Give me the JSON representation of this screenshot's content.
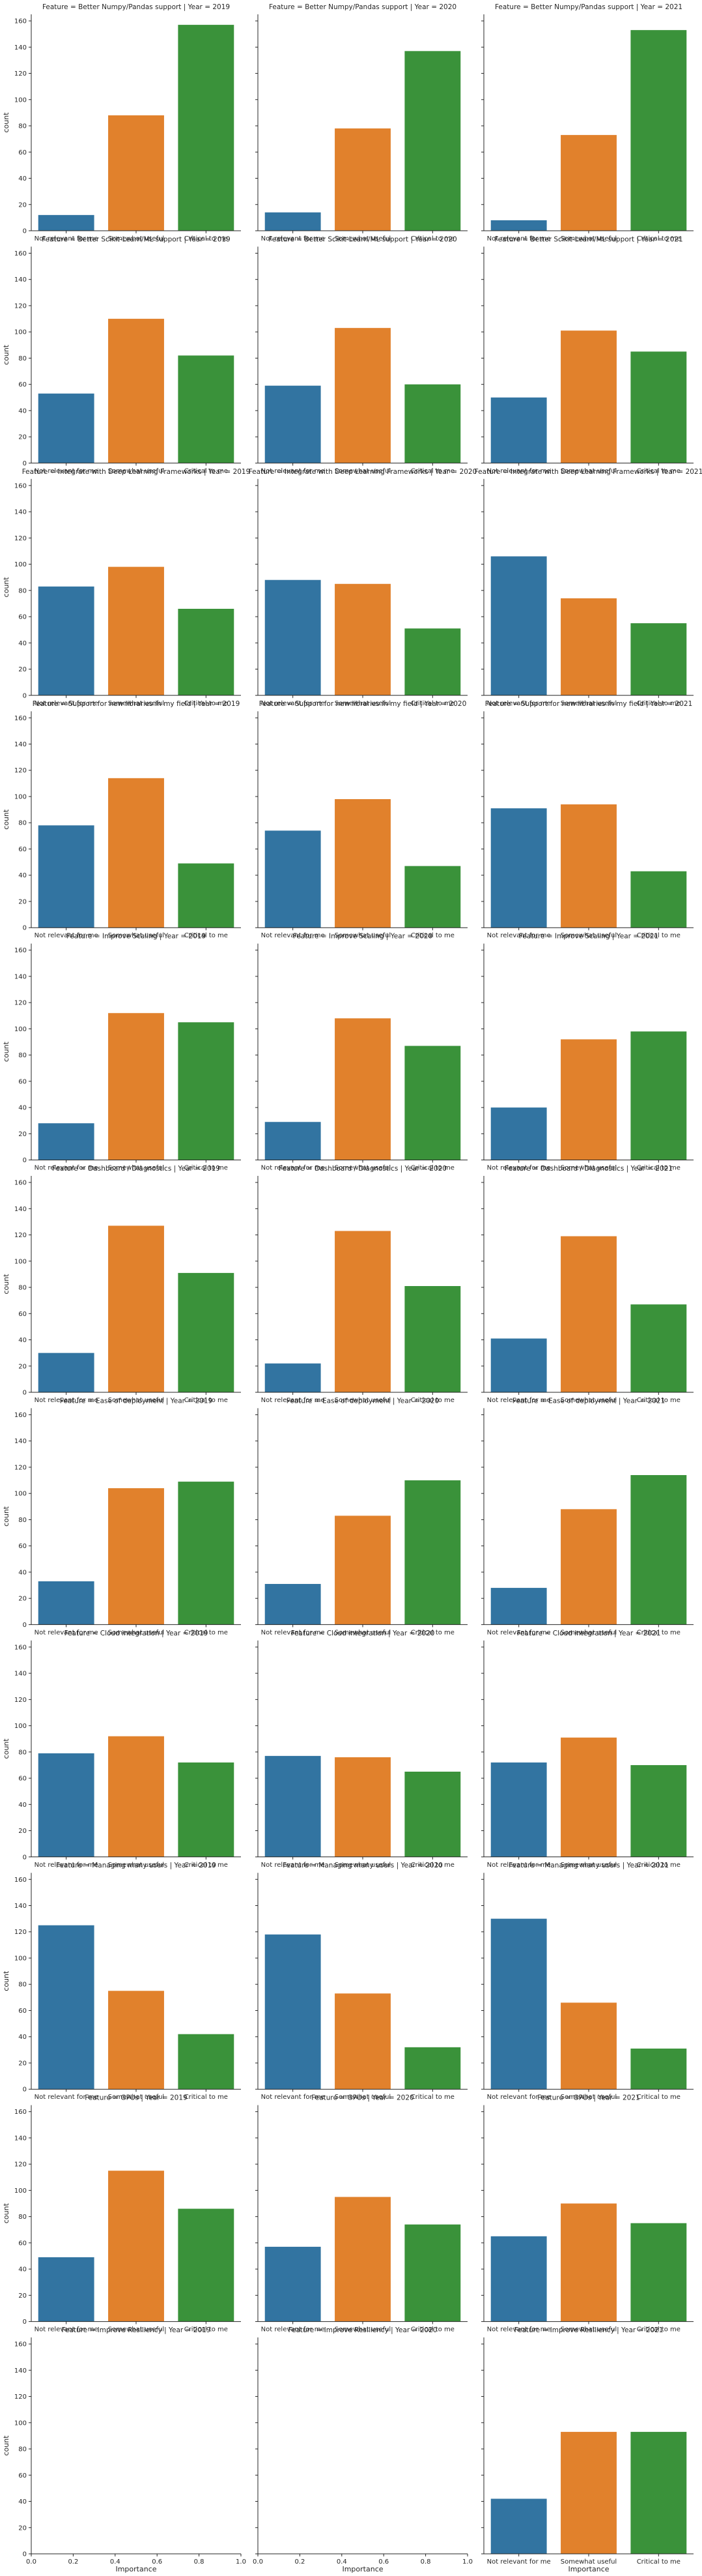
{
  "colors": {
    "Not relevant for me": "#3274a1",
    "Somewhat useful": "#e1812c",
    "Critical to me": "#3a923a",
    "axis": "#262626"
  },
  "chart_data": {
    "type": "bar",
    "xlabel": "Importance",
    "ylabel": "count",
    "ylim": [
      0,
      165
    ],
    "yticks": [
      0,
      20,
      40,
      60,
      80,
      100,
      120,
      140,
      160
    ],
    "empty_xticks": [
      "0.0",
      "0.2",
      "0.4",
      "0.6",
      "0.8",
      "1.0"
    ],
    "categories": [
      "Not relevant for me",
      "Somewhat useful",
      "Critical to me"
    ],
    "years": [
      2019,
      2020,
      2021
    ],
    "panels": [
      {
        "title": "Feature = Better Numpy/Pandas support | Year = 2019",
        "values": [
          12,
          88,
          157
        ]
      },
      {
        "title": "Feature = Better Numpy/Pandas support | Year = 2020",
        "values": [
          14,
          78,
          137
        ]
      },
      {
        "title": "Feature = Better Numpy/Pandas support | Year = 2021",
        "values": [
          8,
          73,
          153
        ]
      },
      {
        "title": "Feature = Better Scikit-Learn/ML support | Year = 2019",
        "values": [
          53,
          110,
          82
        ]
      },
      {
        "title": "Feature = Better Scikit-Learn/ML support | Year = 2020",
        "values": [
          59,
          103,
          60
        ]
      },
      {
        "title": "Feature = Better Scikit-Learn/ML support | Year = 2021",
        "values": [
          50,
          101,
          85
        ]
      },
      {
        "title": "Feature = Integrate with Deep Learning Frameworks | Year = 2019",
        "values": [
          83,
          98,
          66
        ]
      },
      {
        "title": "Feature = Integrate with Deep Learning Frameworks | Year = 2020",
        "values": [
          88,
          85,
          51
        ]
      },
      {
        "title": "Feature = Integrate with Deep Learning Frameworks | Year = 2021",
        "values": [
          106,
          74,
          55
        ]
      },
      {
        "title": "Feature = Support for new libraries in my field | Year = 2019",
        "values": [
          78,
          114,
          49
        ]
      },
      {
        "title": "Feature = Support for new libraries in my field | Year = 2020",
        "values": [
          74,
          98,
          47
        ]
      },
      {
        "title": "Feature = Support for new libraries in my field | Year = 2021",
        "values": [
          91,
          94,
          43
        ]
      },
      {
        "title": "Feature = Improve Scaling  | Year = 2019",
        "values": [
          28,
          112,
          105
        ]
      },
      {
        "title": "Feature = Improve Scaling  | Year = 2020",
        "values": [
          29,
          108,
          87
        ]
      },
      {
        "title": "Feature = Improve Scaling  | Year = 2021",
        "values": [
          40,
          92,
          98
        ]
      },
      {
        "title": "Feature = Dashboard / Diagnostics | Year = 2019",
        "values": [
          30,
          127,
          91
        ]
      },
      {
        "title": "Feature = Dashboard / Diagnostics | Year = 2020",
        "values": [
          22,
          123,
          81
        ]
      },
      {
        "title": "Feature = Dashboard / Diagnostics | Year = 2021",
        "values": [
          41,
          119,
          67
        ]
      },
      {
        "title": "Feature = Ease of deployment | Year = 2019",
        "values": [
          33,
          104,
          109
        ]
      },
      {
        "title": "Feature = Ease of deployment | Year = 2020",
        "values": [
          31,
          83,
          110
        ]
      },
      {
        "title": "Feature = Ease of deployment | Year = 2021",
        "values": [
          28,
          88,
          114
        ]
      },
      {
        "title": "Feature = Cloud integration | Year = 2019",
        "values": [
          79,
          92,
          72
        ]
      },
      {
        "title": "Feature = Cloud integration | Year = 2020",
        "values": [
          77,
          76,
          65
        ]
      },
      {
        "title": "Feature = Cloud integration | Year = 2021",
        "values": [
          72,
          91,
          70
        ]
      },
      {
        "title": "Feature = Managing many users | Year = 2019",
        "values": [
          125,
          75,
          42
        ]
      },
      {
        "title": "Feature = Managing many users | Year = 2020",
        "values": [
          118,
          73,
          32
        ]
      },
      {
        "title": "Feature = Managing many users | Year = 2021",
        "values": [
          130,
          66,
          31
        ]
      },
      {
        "title": "Feature = GPUs | Year = 2019",
        "values": [
          49,
          115,
          86
        ]
      },
      {
        "title": "Feature = GPUs | Year = 2020",
        "values": [
          57,
          95,
          74
        ]
      },
      {
        "title": "Feature = GPUs | Year = 2021",
        "values": [
          65,
          90,
          75
        ]
      },
      {
        "title": "Feature = Improve Resiliency | Year = 2019",
        "values": []
      },
      {
        "title": "Feature = Improve Resiliency | Year = 2020",
        "values": []
      },
      {
        "title": "Feature = Improve Resiliency | Year = 2021",
        "values": [
          42,
          93,
          93
        ]
      }
    ]
  }
}
